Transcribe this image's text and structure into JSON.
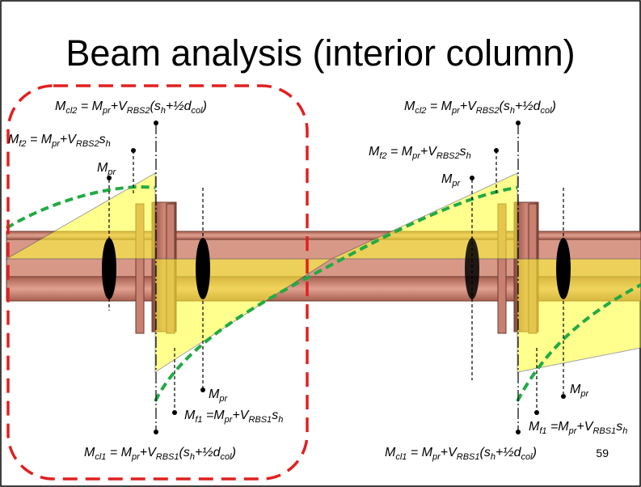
{
  "slide": {
    "title": "Beam analysis (interior column)",
    "page_number": "59"
  },
  "labels": [
    {
      "id": "mcl2-left",
      "base": "M",
      "sub": "cl2",
      "rhs": "= M<sub>pr</sub>+V<sub>RBS2</sub>(s<sub>h</sub>+½d<sub>col</sub>)"
    },
    {
      "id": "mf2-left",
      "base": "M",
      "sub": "f2",
      "rhs": "= M<sub>pr</sub>+V<sub>RBS2</sub>s<sub>h</sub>"
    },
    {
      "id": "mpr-left-top",
      "base": "M",
      "sub": "pr",
      "rhs": ""
    },
    {
      "id": "mpr-left-bottom",
      "base": "M",
      "sub": "pr",
      "rhs": ""
    },
    {
      "id": "mf1-left",
      "base": "M",
      "sub": "f1",
      "rhs": "=M<sub>pr</sub>+V<sub>RBS1</sub>s<sub>h</sub>"
    },
    {
      "id": "mcl1-left",
      "base": "M",
      "sub": "cl1",
      "rhs": "= M<sub>pr</sub>+V<sub>RBS1</sub>(s<sub>h</sub>+½d<sub>col</sub>)"
    },
    {
      "id": "mcl2-right",
      "base": "M",
      "sub": "cl2",
      "rhs": "= M<sub>pr</sub>+V<sub>RBS2</sub>(s<sub>h</sub>+½d<sub>col</sub>)"
    },
    {
      "id": "mf2-right",
      "base": "M",
      "sub": "f2",
      "rhs": "= M<sub>pr</sub>+V<sub>RBS2</sub>s<sub>h</sub>"
    },
    {
      "id": "mpr-right-top",
      "base": "M",
      "sub": "pr",
      "rhs": ""
    },
    {
      "id": "mpr-right-bottom",
      "base": "M",
      "sub": "pr",
      "rhs": ""
    },
    {
      "id": "mf1-right",
      "base": "M",
      "sub": "f1",
      "rhs": "=M<sub>pr</sub>+V<sub>RBS1</sub>s<sub>h</sub>"
    },
    {
      "id": "mcl1-right",
      "base": "M",
      "sub": "cl1",
      "rhs": "= M<sub>pr</sub>+V<sub>RBS1</sub>(s<sub>h</sub>+½d<sub>col</sub>)"
    }
  ],
  "colors": {
    "beam": "#c8806f",
    "beam_dark": "#8a4a3c",
    "moment_fill": "#ffff66",
    "curve": "#22aa44",
    "highlight_box": "#e02020"
  }
}
